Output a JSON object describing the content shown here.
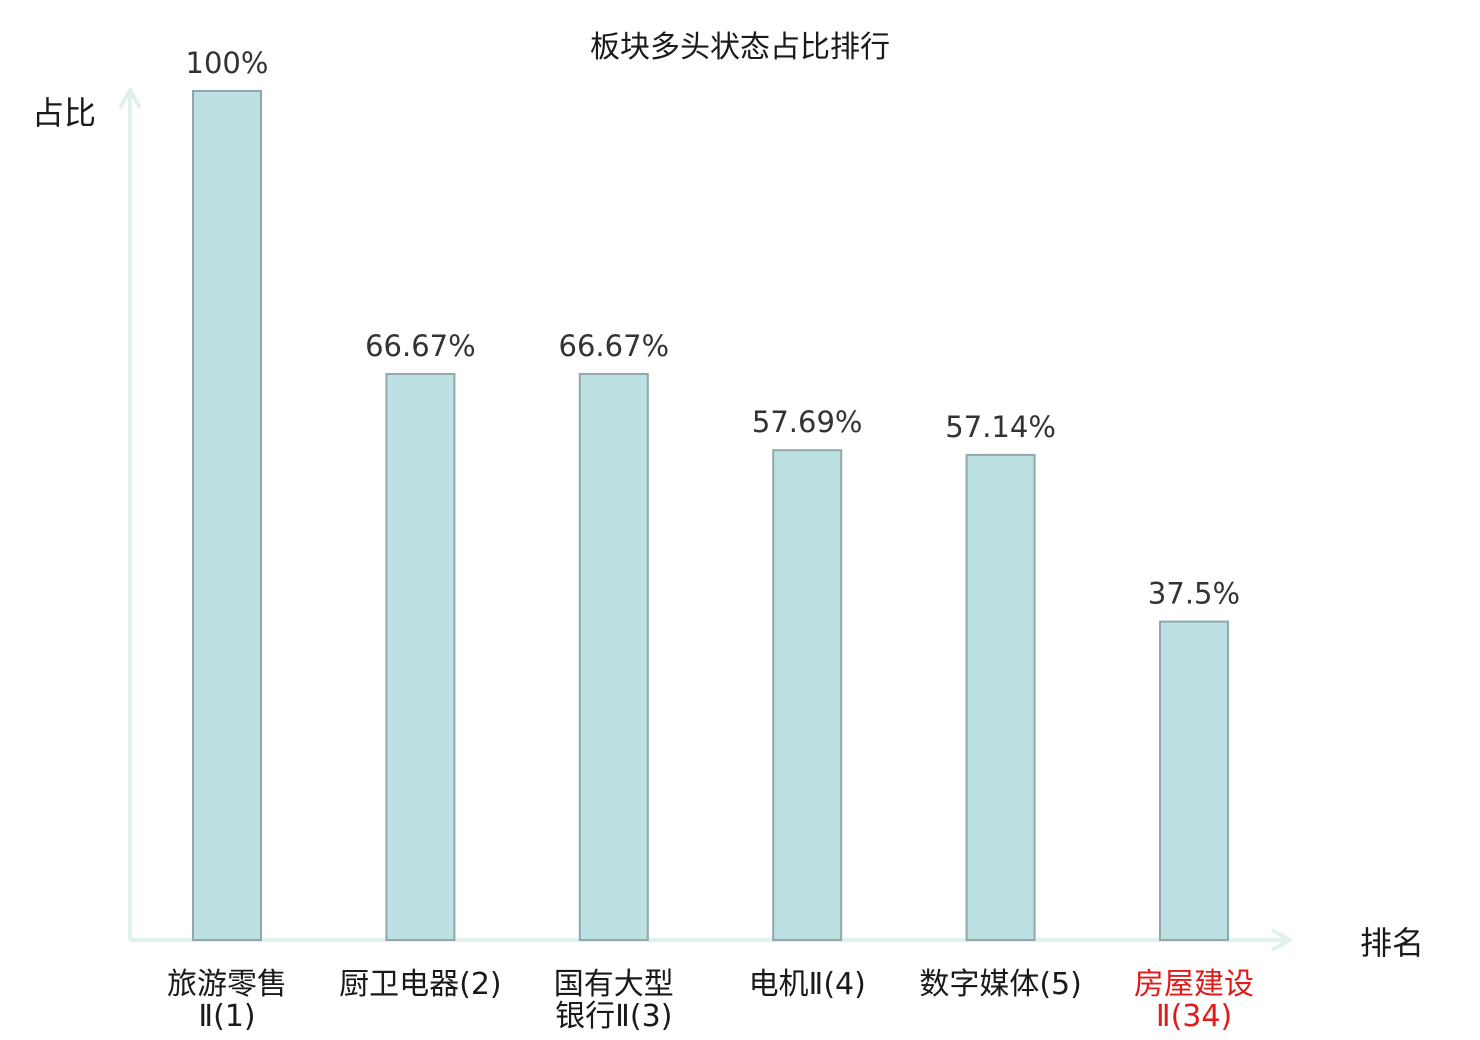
{
  "chart_data": {
    "type": "bar",
    "title": "板块多头状态占比排行",
    "ylabel": "占比",
    "xlabel": "排名",
    "ylim": [
      0,
      100
    ],
    "grid": false,
    "categories": [
      {
        "line1": "旅游零售",
        "line2": "Ⅱ(1)",
        "highlight": false
      },
      {
        "line1": "厨卫电器(2)",
        "line2": "",
        "highlight": false
      },
      {
        "line1": "国有大型",
        "line2": "银行Ⅱ(3)",
        "highlight": false
      },
      {
        "line1": "电机Ⅱ(4)",
        "line2": "",
        "highlight": false
      },
      {
        "line1": "数字媒体(5)",
        "line2": "",
        "highlight": false
      },
      {
        "line1": "房屋建设",
        "line2": "Ⅱ(34)",
        "highlight": true
      }
    ],
    "values": [
      100,
      66.67,
      66.67,
      57.69,
      57.14,
      37.5
    ],
    "value_labels": [
      "100%",
      "66.67%",
      "66.67%",
      "57.69%",
      "57.14%",
      "37.5%"
    ]
  },
  "colors": {
    "bar_fill": "#bde0e3",
    "bar_stroke": "#8fa8ad",
    "axis": "#dff2ef",
    "value_label": "#333333",
    "tick_label": "#1a1a1a",
    "highlight": "#e31a1a"
  }
}
